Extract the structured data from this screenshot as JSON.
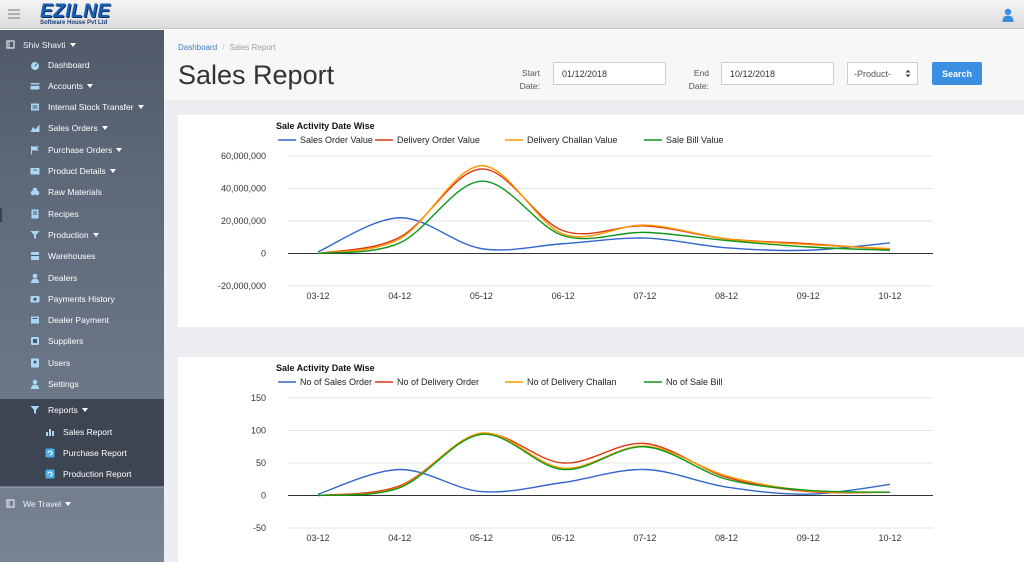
{
  "app": {
    "logo_text": "EZILNE",
    "logo_subtext": "Software House Pvt Ltd"
  },
  "sidebar": {
    "user_name": "Shiv Shavti",
    "items": [
      {
        "label": "Dashboard",
        "icon": "dashboard-icon",
        "caret": false
      },
      {
        "label": "Accounts",
        "icon": "accounts-icon",
        "caret": true
      },
      {
        "label": "Internal Stock Transfer",
        "icon": "transfer-icon",
        "caret": true
      },
      {
        "label": "Sales Orders",
        "icon": "sales-orders-icon",
        "caret": true
      },
      {
        "label": "Purchase Orders",
        "icon": "flag-icon",
        "caret": true
      },
      {
        "label": "Product Details",
        "icon": "product-icon",
        "caret": true
      },
      {
        "label": "Raw Materials",
        "icon": "raw-materials-icon",
        "caret": false
      },
      {
        "label": "Recipes",
        "icon": "recipes-icon",
        "caret": false
      },
      {
        "label": "Production",
        "icon": "production-icon",
        "caret": true
      },
      {
        "label": "Warehouses",
        "icon": "warehouse-icon",
        "caret": false
      },
      {
        "label": "Dealers",
        "icon": "dealers-icon",
        "caret": false
      },
      {
        "label": "Payments History",
        "icon": "payments-icon",
        "caret": false
      },
      {
        "label": "Dealer Payment",
        "icon": "dealer-payment-icon",
        "caret": false
      },
      {
        "label": "Suppliers",
        "icon": "suppliers-icon",
        "caret": false
      },
      {
        "label": "Users",
        "icon": "users-icon",
        "caret": false
      },
      {
        "label": "Settings",
        "icon": "settings-icon",
        "caret": false
      }
    ],
    "reports": {
      "label": "Reports",
      "children": [
        {
          "label": "Sales Report",
          "icon": "bar-chart-icon"
        },
        {
          "label": "Purchase Report",
          "icon": "refresh-icon"
        },
        {
          "label": "Production Report",
          "icon": "refresh-icon"
        }
      ]
    },
    "second_group": "We Travel"
  },
  "breadcrumb": {
    "home": "Dashboard",
    "current": "Sales Report"
  },
  "page_title": "Sales Report",
  "filters": {
    "start_label_1": "Start",
    "start_label_2": "Date:",
    "start_value": "01/12/2018",
    "end_label_1": "End",
    "end_label_2": "Date:",
    "end_value": "10/12/2018",
    "product_selected": "-Product-",
    "search_label": "Search"
  },
  "colors": {
    "blue": "#3366cc",
    "red": "#dc3912",
    "orange": "#ff9900",
    "green": "#109618",
    "button": "#3b8fe0"
  },
  "chart_data": [
    {
      "type": "line",
      "title": "Sale Activity Date Wise",
      "categories": [
        "03-12",
        "04-12",
        "05-12",
        "06-12",
        "07-12",
        "08-12",
        "09-12",
        "10-12"
      ],
      "yticks": [
        "60,000,000",
        "40,000,000",
        "20,000,000",
        "0",
        "-20,000,000"
      ],
      "ylim": [
        -20000000,
        60000000
      ],
      "series": [
        {
          "name": "Sales Order Value",
          "color": "#3366cc",
          "values": [
            1000000,
            22000000,
            3000000,
            6000000,
            9500000,
            3500000,
            2000000,
            6500000
          ]
        },
        {
          "name": "Delivery Order Value",
          "color": "#dc3912",
          "values": [
            0,
            10000000,
            52000000,
            14000000,
            17000000,
            9000000,
            6000000,
            2500000
          ]
        },
        {
          "name": "Delivery Challan Value",
          "color": "#ff9900",
          "values": [
            0,
            9000000,
            54000000,
            12000000,
            17500000,
            9000000,
            5500000,
            3000000
          ]
        },
        {
          "name": "Sale Bill Value",
          "color": "#109618",
          "values": [
            0,
            6500000,
            44500000,
            11000000,
            13000000,
            8000000,
            4000000,
            2000000
          ]
        }
      ],
      "grid": true,
      "legend": "top"
    },
    {
      "type": "line",
      "title": "Sale Activity Date Wise",
      "categories": [
        "03-12",
        "04-12",
        "05-12",
        "06-12",
        "07-12",
        "08-12",
        "09-12",
        "10-12"
      ],
      "yticks": [
        "150",
        "100",
        "50",
        "0",
        "-50"
      ],
      "ylim": [
        -50,
        150
      ],
      "series": [
        {
          "name": "No of Sales Order",
          "color": "#3366cc",
          "values": [
            2,
            40,
            6,
            20,
            40,
            13,
            2,
            17
          ]
        },
        {
          "name": "No of Delivery Order",
          "color": "#dc3912",
          "values": [
            0,
            15,
            95,
            50,
            80,
            28,
            6,
            5
          ]
        },
        {
          "name": "No of Delivery Challan",
          "color": "#ff9900",
          "values": [
            0,
            13,
            96,
            42,
            76,
            30,
            7,
            5
          ]
        },
        {
          "name": "No of Sale Bill",
          "color": "#109618",
          "values": [
            0,
            12,
            94,
            40,
            75,
            25,
            8,
            5
          ]
        }
      ],
      "grid": true,
      "legend": "top"
    }
  ]
}
